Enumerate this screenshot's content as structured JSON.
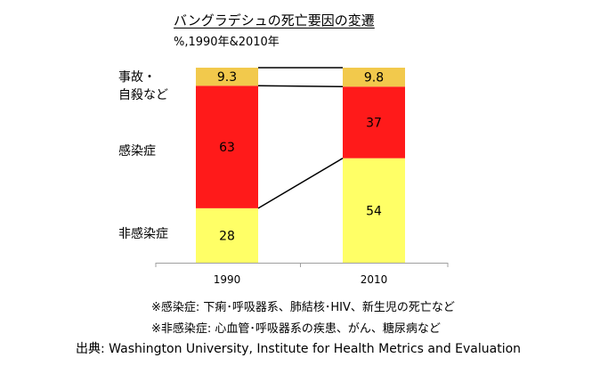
{
  "chart_data": {
    "type": "bar",
    "stacked": true,
    "normalized": true,
    "title": "バングラデシュの死亡要因の変遷",
    "subtitle": "%,1990年&2010年",
    "categories": [
      "1990",
      "2010"
    ],
    "series": [
      {
        "key": "noncomm",
        "name": "非感染症",
        "values": [
          28,
          54
        ],
        "color": "#ffff66"
      },
      {
        "key": "infect",
        "name": "感染症",
        "values": [
          63,
          37
        ],
        "color": "#ff1a1a"
      },
      {
        "key": "injury",
        "name": "事故・\n自殺など",
        "values": [
          9.3,
          9.8
        ],
        "color": "#f2c94c"
      }
    ],
    "value_labels": [
      [
        "28",
        "63",
        "9.3"
      ],
      [
        "54",
        "37",
        "9.8"
      ]
    ],
    "connector_lines": true
  },
  "notes": [
    "※感染症: 下痢･呼吸器系、肺結核･HIV、新生児の死亡など",
    "※非感染症: 心血管･呼吸器系の疾患、がん、糖尿病など"
  ],
  "source": "出典: Washington University, Institute for Health Metrics and Evaluation"
}
